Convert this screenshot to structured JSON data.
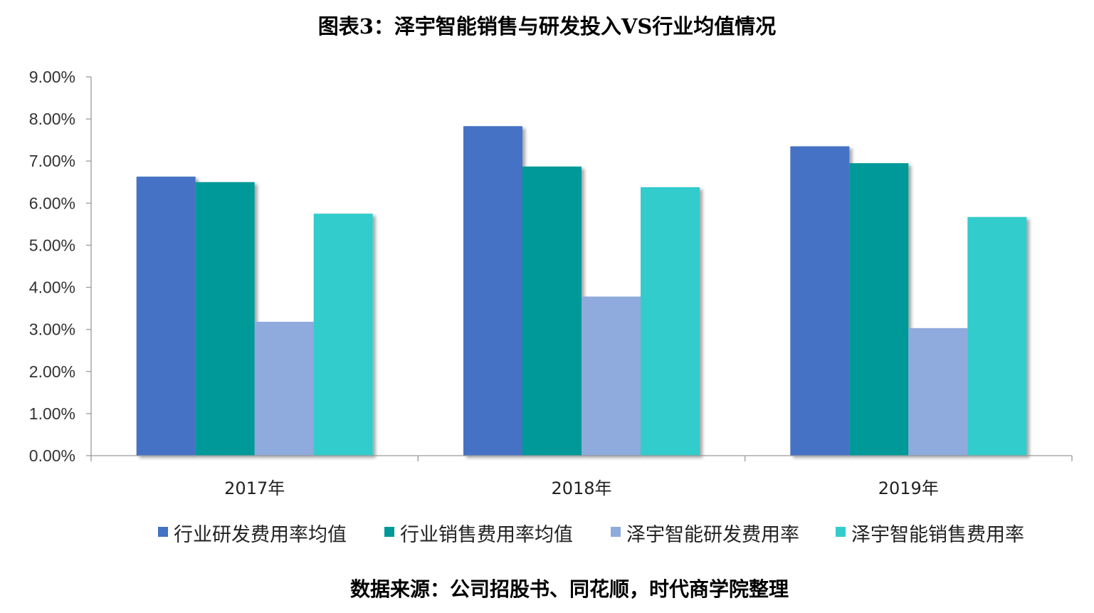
{
  "chart_data": {
    "type": "bar",
    "title": "图表3：泽宇智能销售与研发投入VS行业均值情况",
    "source": "数据来源：公司招股书、同花顺，时代商学院整理",
    "categories": [
      "2017年",
      "2018年",
      "2019年"
    ],
    "series": [
      {
        "name": "行业研发费用率均值",
        "color": "#4472C4",
        "values": [
          6.63,
          7.83,
          7.35
        ]
      },
      {
        "name": "行业销售费用率均值",
        "color": "#009999",
        "values": [
          6.5,
          6.87,
          6.95
        ]
      },
      {
        "name": "泽宇智能研发费用率",
        "color": "#8FAADC",
        "values": [
          3.18,
          3.78,
          3.03
        ]
      },
      {
        "name": "泽宇智能销售费用率",
        "color": "#33CCCC",
        "values": [
          5.75,
          6.38,
          5.67
        ]
      }
    ],
    "ylim": [
      0,
      9
    ],
    "yticks": [
      "0.00%",
      "1.00%",
      "2.00%",
      "3.00%",
      "4.00%",
      "5.00%",
      "6.00%",
      "7.00%",
      "8.00%",
      "9.00%"
    ],
    "xlabel": "",
    "ylabel": "",
    "grid": false,
    "legend_position": "bottom"
  }
}
